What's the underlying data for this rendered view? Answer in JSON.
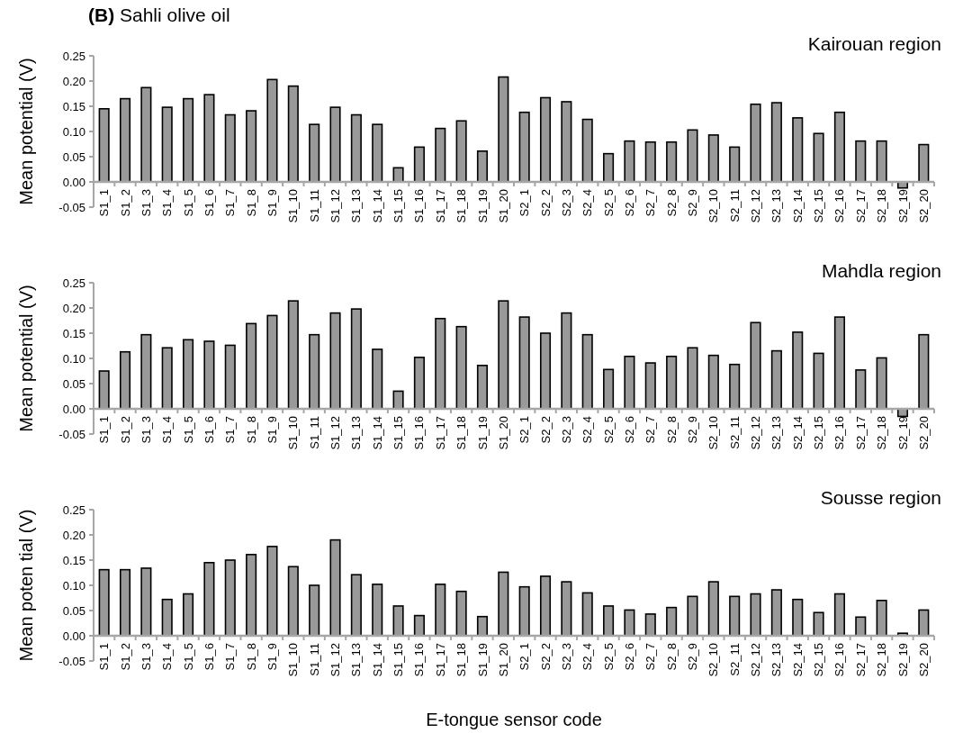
{
  "chart_data": [
    {
      "type": "bar",
      "title": "(B) Sahli olive oil",
      "subtitle": "Kairouan region",
      "ylabel": "Mean potential (V)",
      "color": "#999999",
      "categories": [
        "S1_1",
        "S1_2",
        "S1_3",
        "S1_4",
        "S1_5",
        "S1_6",
        "S1_7",
        "S1_8",
        "S1_9",
        "S1_10",
        "S1_11",
        "S1_12",
        "S1_13",
        "S1_14",
        "S1_15",
        "S1_16",
        "S1_17",
        "S1_18",
        "S1_19",
        "S1_20",
        "S2_1",
        "S2_2",
        "S2_3",
        "S2_4",
        "S2_5",
        "S2_6",
        "S2_7",
        "S2_8",
        "S2_9",
        "S2_10",
        "S2_11",
        "S2_12",
        "S2_13",
        "S2_14",
        "S2_15",
        "S2_16",
        "S2_17",
        "S2_18",
        "S2_19",
        "S2_20"
      ],
      "values": [
        0.145,
        0.165,
        0.187,
        0.148,
        0.165,
        0.173,
        0.133,
        0.141,
        0.203,
        0.19,
        0.114,
        0.148,
        0.133,
        0.114,
        0.028,
        0.069,
        0.106,
        0.121,
        0.061,
        0.208,
        0.138,
        0.167,
        0.159,
        0.124,
        0.056,
        0.081,
        0.079,
        0.079,
        0.103,
        0.093,
        0.069,
        0.154,
        0.157,
        0.127,
        0.096,
        0.138,
        0.081,
        0.081,
        -0.012,
        0.074
      ],
      "ylim": [
        -0.05,
        0.25
      ],
      "yticks": [
        {
          "value": -0.05,
          "label": "-0.05"
        },
        {
          "value": 0,
          "label": "0.00"
        },
        {
          "value": 0.05,
          "label": "0.05"
        },
        {
          "value": 0.1,
          "label": "0.10"
        },
        {
          "value": 0.15,
          "label": "0.15"
        },
        {
          "value": 0.2,
          "label": "0.20"
        },
        {
          "value": 0.25,
          "label": "0.25"
        }
      ]
    },
    {
      "type": "bar",
      "subtitle": "Mahdla region",
      "ylabel": "Mean potential (V)",
      "color": "#999999",
      "categories": [
        "S1_1",
        "S1_2",
        "S1_3",
        "S1_4",
        "S1_5",
        "S1_6",
        "S1_7",
        "S1_8",
        "S1_9",
        "S1_10",
        "S1_11",
        "S1_12",
        "S1_13",
        "S1_14",
        "S1_15",
        "S1_16",
        "S1_17",
        "S1_18",
        "S1_19",
        "S1_20",
        "S2_1",
        "S2_2",
        "S2_3",
        "S2_4",
        "S2_5",
        "S2_6",
        "S2_7",
        "S2_8",
        "S2_9",
        "S2_10",
        "S2_11",
        "S2_12",
        "S2_13",
        "S2_14",
        "S2_15",
        "S2_16",
        "S2_17",
        "S2_18",
        "S2_19",
        "S2_20"
      ],
      "values": [
        0.075,
        0.113,
        0.147,
        0.121,
        0.137,
        0.134,
        0.126,
        0.169,
        0.185,
        0.214,
        0.147,
        0.19,
        0.198,
        0.118,
        0.035,
        0.102,
        0.179,
        0.163,
        0.086,
        0.214,
        0.182,
        0.15,
        0.19,
        0.147,
        0.078,
        0.104,
        0.091,
        0.104,
        0.121,
        0.106,
        0.088,
        0.171,
        0.115,
        0.152,
        0.11,
        0.182,
        0.077,
        0.101,
        -0.015,
        0.147
      ],
      "ylim": [
        -0.05,
        0.25
      ],
      "yticks": [
        {
          "value": -0.05,
          "label": "-0.05"
        },
        {
          "value": 0,
          "label": "0.00"
        },
        {
          "value": 0.05,
          "label": "0.05"
        },
        {
          "value": 0.1,
          "label": "0.10"
        },
        {
          "value": 0.15,
          "label": "0.15"
        },
        {
          "value": 0.2,
          "label": "0.20"
        },
        {
          "value": 0.25,
          "label": "0.25"
        }
      ]
    },
    {
      "type": "bar",
      "subtitle": "Sousse region",
      "ylabel": "Mean poten tial (V)",
      "xlabel": "E-tongue sensor code",
      "color": "#999999",
      "categories": [
        "S1_1",
        "S1_2",
        "S1_3",
        "S1_4",
        "S1_5",
        "S1_6",
        "S1_7",
        "S1_8",
        "S1_9",
        "S1_10",
        "S1_11",
        "S1_12",
        "S1_13",
        "S1_14",
        "S1_15",
        "S1_16",
        "S1_17",
        "S1_18",
        "S1_19",
        "S1_20",
        "S2_1",
        "S2_2",
        "S2_3",
        "S2_4",
        "S2_5",
        "S2_6",
        "S2_7",
        "S2_8",
        "S2_9",
        "S2_10",
        "S2_11",
        "S2_12",
        "S2_13",
        "S2_14",
        "S2_15",
        "S2_16",
        "S2_17",
        "S2_18",
        "S2_19",
        "S2_20"
      ],
      "values": [
        0.131,
        0.131,
        0.134,
        0.072,
        0.083,
        0.145,
        0.15,
        0.161,
        0.177,
        0.137,
        0.1,
        0.19,
        0.121,
        0.102,
        0.059,
        0.04,
        0.102,
        0.088,
        0.038,
        0.126,
        0.097,
        0.118,
        0.107,
        0.085,
        0.059,
        0.051,
        0.043,
        0.056,
        0.078,
        0.107,
        0.078,
        0.083,
        0.091,
        0.072,
        0.046,
        0.083,
        0.037,
        0.07,
        0.005,
        0.051
      ],
      "ylim": [
        -0.05,
        0.25
      ],
      "yticks": [
        {
          "value": -0.05,
          "label": "-0.05"
        },
        {
          "value": 0,
          "label": "0.00"
        },
        {
          "value": 0.05,
          "label": "0.05"
        },
        {
          "value": 0.1,
          "label": "0.10"
        },
        {
          "value": 0.15,
          "label": "0.15"
        },
        {
          "value": 0.2,
          "label": "0.20"
        },
        {
          "value": 0.25,
          "label": "0.25"
        }
      ]
    }
  ]
}
